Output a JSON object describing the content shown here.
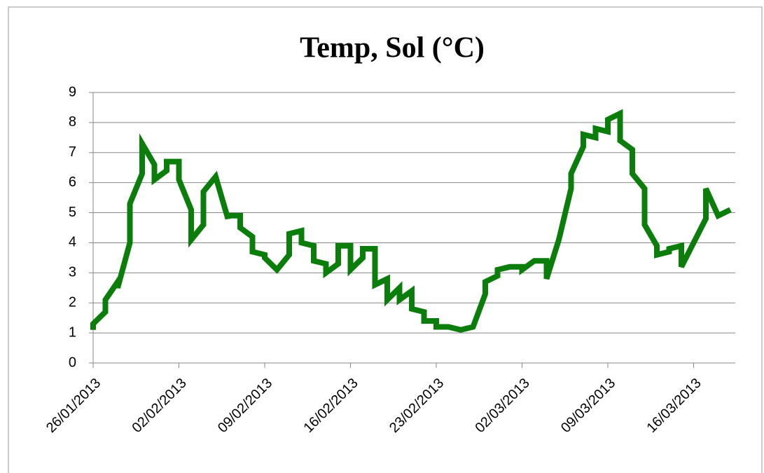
{
  "chart_data": {
    "type": "line",
    "title": "Temp, Sol (°C)",
    "color": "#0a7d0a",
    "x": [
      "26/01/2013",
      "26/01/2013",
      "27/01/2013",
      "27/01/2013",
      "28/01/2013",
      "28/01/2013",
      "29/01/2013",
      "29/01/2013",
      "30/01/2013",
      "30/01/2013",
      "31/01/2013",
      "31/01/2013",
      "01/02/2013",
      "01/02/2013",
      "02/02/2013",
      "02/02/2013",
      "03/02/2013",
      "03/02/2013",
      "04/02/2013",
      "04/02/2013",
      "05/02/2013",
      "06/02/2013",
      "06/02/2013",
      "07/02/2013",
      "07/02/2013",
      "08/02/2013",
      "08/02/2013",
      "09/02/2013",
      "09/02/2013",
      "10/02/2013",
      "11/02/2013",
      "11/02/2013",
      "12/02/2013",
      "12/02/2013",
      "13/02/2013",
      "13/02/2013",
      "14/02/2013",
      "14/02/2013",
      "15/02/2013",
      "15/02/2013",
      "16/02/2013",
      "16/02/2013",
      "17/02/2013",
      "17/02/2013",
      "18/02/2013",
      "18/02/2013",
      "19/02/2013",
      "19/02/2013",
      "20/02/2013",
      "20/02/2013",
      "21/02/2013",
      "21/02/2013",
      "22/02/2013",
      "22/02/2013",
      "23/02/2013",
      "23/02/2013",
      "24/02/2013",
      "25/02/2013",
      "26/02/2013",
      "27/02/2013",
      "27/02/2013",
      "28/02/2013",
      "28/02/2013",
      "01/03/2013",
      "02/03/2013",
      "02/03/2013",
      "03/03/2013",
      "04/03/2013",
      "04/03/2013",
      "05/03/2013",
      "06/03/2013",
      "06/03/2013",
      "07/03/2013",
      "07/03/2013",
      "08/03/2013",
      "08/03/2013",
      "09/03/2013",
      "09/03/2013",
      "10/03/2013",
      "10/03/2013",
      "11/03/2013",
      "11/03/2013",
      "12/03/2013",
      "12/03/2013",
      "13/03/2013",
      "13/03/2013",
      "14/03/2013",
      "14/03/2013",
      "15/03/2013",
      "15/03/2013",
      "16/03/2013",
      "17/03/2013",
      "17/03/2013",
      "18/03/2013",
      "19/03/2013"
    ],
    "values": [
      1.1,
      1.3,
      1.7,
      2.1,
      2.7,
      2.5,
      4.0,
      5.3,
      6.3,
      7.3,
      6.6,
      6.1,
      6.4,
      6.7,
      6.7,
      6.1,
      5.1,
      4.1,
      4.6,
      5.7,
      6.2,
      4.8,
      4.9,
      4.9,
      4.5,
      4.2,
      3.7,
      3.6,
      3.5,
      3.1,
      3.6,
      4.3,
      4.4,
      4.0,
      3.9,
      3.4,
      3.3,
      3.0,
      3.3,
      3.9,
      3.9,
      3.1,
      3.5,
      3.8,
      3.8,
      2.6,
      2.8,
      2.1,
      2.5,
      2.1,
      2.4,
      1.8,
      1.7,
      1.4,
      1.4,
      1.2,
      1.2,
      1.1,
      1.2,
      2.3,
      2.7,
      2.9,
      3.1,
      3.2,
      3.2,
      3.1,
      3.4,
      3.4,
      2.8,
      4.1,
      5.8,
      6.3,
      7.2,
      7.6,
      7.5,
      7.8,
      7.7,
      8.1,
      8.3,
      7.4,
      7.1,
      6.3,
      5.8,
      4.6,
      3.9,
      3.6,
      3.7,
      3.8,
      3.9,
      3.2,
      4.0,
      4.8,
      5.8,
      4.9,
      5.1
    ],
    "xlim": [
      "26/01/2013",
      "19/03/2013"
    ],
    "xticks": [
      "26/01/2013",
      "02/02/2013",
      "09/02/2013",
      "16/02/2013",
      "23/02/2013",
      "02/03/2013",
      "09/03/2013",
      "16/03/2013"
    ],
    "ylim": [
      0,
      9
    ],
    "yticks": [
      0,
      1,
      2,
      3,
      4,
      5,
      6,
      7,
      8,
      9
    ],
    "grid": true
  }
}
